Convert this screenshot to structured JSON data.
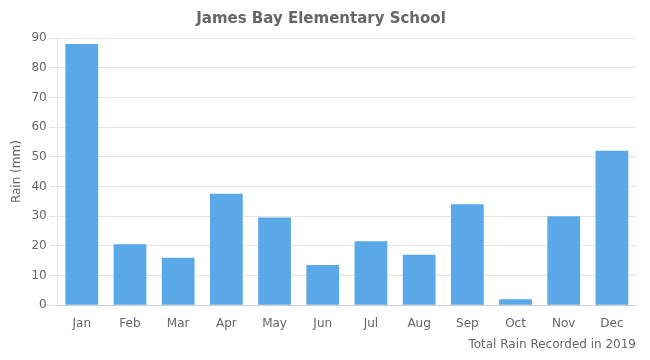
{
  "chart_data": {
    "type": "bar",
    "title": "James Bay Elementary School",
    "xlabel": "Total Rain Recorded in 2019",
    "ylabel": "Rain (mm)",
    "categories": [
      "Jan",
      "Feb",
      "Mar",
      "Apr",
      "May",
      "Jun",
      "Jul",
      "Aug",
      "Sep",
      "Oct",
      "Nov",
      "Dec"
    ],
    "values": [
      88,
      20.5,
      16,
      37.5,
      29.5,
      13.5,
      21.5,
      17,
      34,
      2,
      30,
      52
    ],
    "color": "#5ba8e8",
    "ylim": [
      0,
      90
    ],
    "yticks": [
      0,
      10,
      20,
      30,
      40,
      50,
      60,
      70,
      80,
      90
    ],
    "grid": true
  }
}
